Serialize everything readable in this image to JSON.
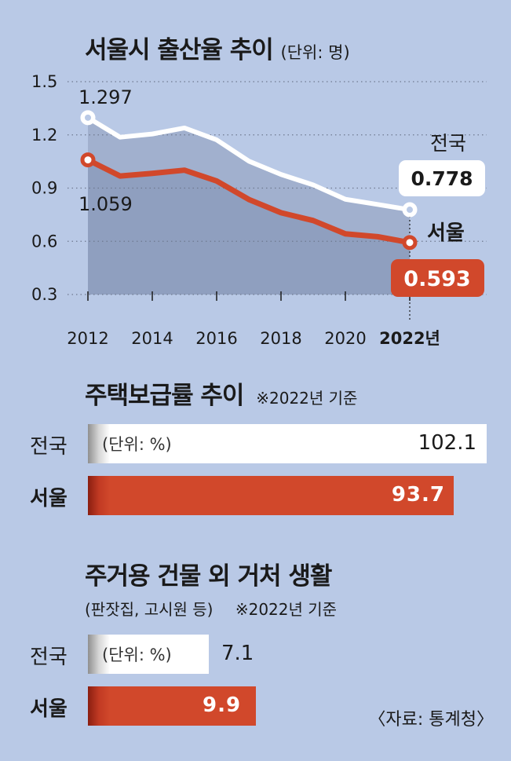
{
  "chart_data": [
    {
      "type": "line",
      "title": "서울시 출산율 추이",
      "unit": "(단위: 명)",
      "x": [
        2012,
        2013,
        2014,
        2015,
        2016,
        2017,
        2018,
        2019,
        2020,
        2021,
        2022
      ],
      "x_tick_labels": [
        "2012",
        "2014",
        "2016",
        "2018",
        "2020",
        "2022년"
      ],
      "y_tick_labels": [
        "1.5",
        "1.2",
        "0.9",
        "0.6",
        "0.3"
      ],
      "ylim": [
        0.3,
        1.5
      ],
      "grid": true,
      "series": [
        {
          "name": "전국",
          "color": "#ffffff",
          "values": [
            1.297,
            1.187,
            1.205,
            1.239,
            1.172,
            1.052,
            0.977,
            0.918,
            0.837,
            0.808,
            0.778
          ],
          "start_label": "1.297",
          "end_label": "0.778"
        },
        {
          "name": "서울",
          "color": "#d1482b",
          "values": [
            1.059,
            0.968,
            0.983,
            1.001,
            0.94,
            0.836,
            0.761,
            0.717,
            0.642,
            0.626,
            0.593
          ],
          "start_label": "1.059",
          "end_label": "0.593"
        }
      ]
    },
    {
      "type": "bar",
      "title": "주택보급률 추이",
      "note": "※2022년 기준",
      "unit": "(단위: %)",
      "categories": [
        "전국",
        "서울"
      ],
      "values": [
        102.1,
        93.7
      ],
      "value_labels": [
        "102.1",
        "93.7"
      ],
      "colors": [
        "#ffffff",
        "#d1482b"
      ]
    },
    {
      "type": "bar",
      "title": "주거용 건물 외 거처 생활",
      "subtitle": "(판잣집, 고시원 등)",
      "note": "※2022년 기준",
      "unit": "(단위: %)",
      "categories": [
        "전국",
        "서울"
      ],
      "values": [
        7.1,
        9.9
      ],
      "value_labels": [
        "7.1",
        "9.9"
      ],
      "colors": [
        "#ffffff",
        "#d1482b"
      ]
    }
  ],
  "source": "〈자료: 통계청〉"
}
